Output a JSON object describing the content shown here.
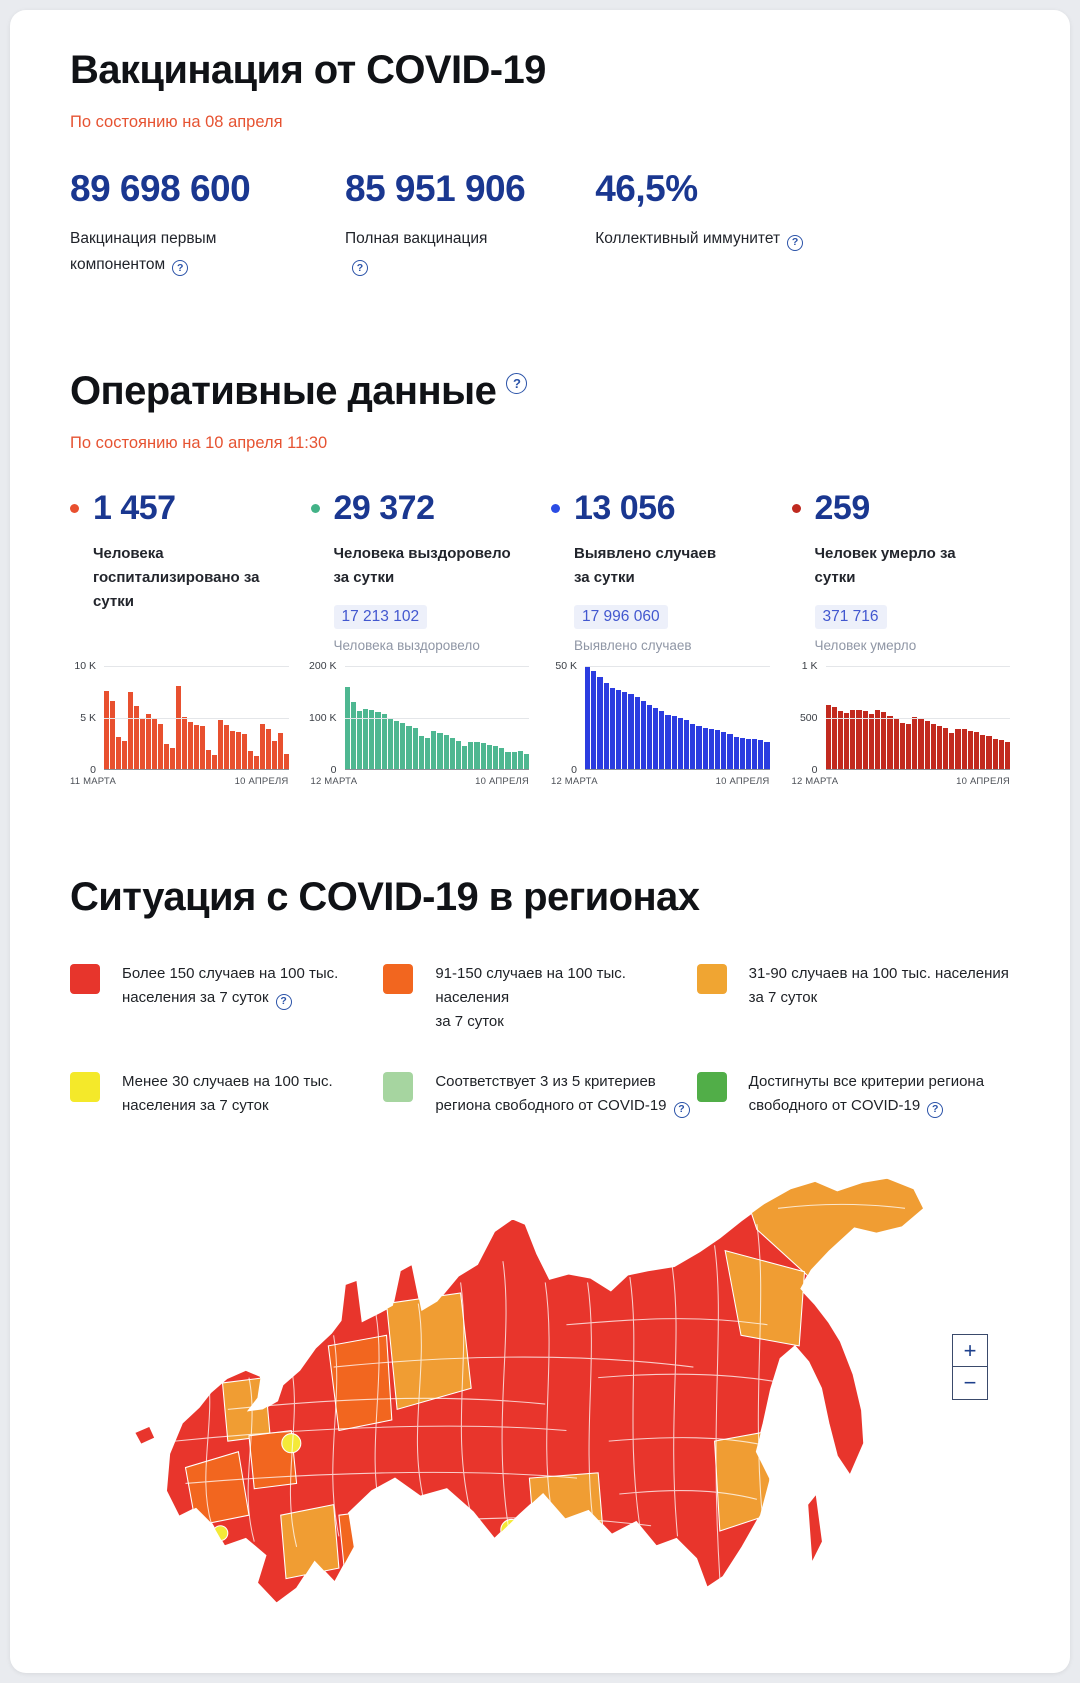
{
  "theme": {
    "page_bg": "#e9ebef",
    "card_bg": "#ffffff",
    "heading": "#101216",
    "accent_red": "#e65332",
    "number_blue": "#1a3790",
    "total_text": "#4257cf",
    "total_bg": "#edf0fa",
    "muted_gray": "#8f96a5",
    "help_blue": "#2b53a8"
  },
  "vaccination": {
    "title": "Вакцинация от COVID-19",
    "as_of": "По состоянию на 08 апреля",
    "stats": [
      {
        "value": "89 698 600",
        "label": "Вакцинация первым компонентом"
      },
      {
        "value": "85 951 906",
        "label": "Полная вакцинация"
      },
      {
        "value": "46,5%",
        "label": "Коллективный иммунитет"
      }
    ]
  },
  "operational": {
    "title": "Оперативные данные",
    "as_of": "По состоянию на 10 апреля 11:30",
    "cards": [
      {
        "value": "1 457",
        "bullet_color": "#e8502f",
        "label": "Человека госпитализировано за сутки",
        "chart": {
          "type": "bar",
          "color": "#e8502f",
          "ymax": 10000,
          "yticks": [
            "10 K",
            "5 K",
            "0"
          ],
          "x_start": "11 МАРТА",
          "x_end": "10 АПРЕЛЯ",
          "values": [
            7600,
            6600,
            3100,
            2700,
            7500,
            6100,
            4900,
            5400,
            5000,
            4400,
            2400,
            2100,
            8100,
            5100,
            4600,
            4300,
            4200,
            1900,
            1400,
            4800,
            4300,
            3700,
            3600,
            3400,
            1800,
            1300,
            4400,
            3900,
            2700,
            3500,
            1457
          ]
        }
      },
      {
        "value": "29 372",
        "bullet_color": "#42b287",
        "label": "Человека выздоровело за сутки",
        "total": "17 213 102",
        "total_label": "Человека выздоровело",
        "chart": {
          "type": "bar",
          "color": "#4eb791",
          "ymax": 200000,
          "yticks": [
            "200 K",
            "100 K",
            "0"
          ],
          "x_start": "12 МАРТА",
          "x_end": "10 АПРЕЛЯ",
          "values": [
            160000,
            131000,
            112000,
            116000,
            114000,
            111000,
            107000,
            99000,
            94000,
            89000,
            84000,
            79000,
            64000,
            60000,
            74000,
            70000,
            67000,
            61000,
            54000,
            44000,
            52000,
            53000,
            50000,
            46000,
            44000,
            41000,
            34000,
            33000,
            36000,
            29372
          ]
        }
      },
      {
        "value": "13 056",
        "bullet_color": "#2b4ce4",
        "label": "Выявлено случаев за сутки",
        "total": "17 996 060",
        "total_label": "Выявлено случаев",
        "chart": {
          "type": "bar",
          "color": "#2b3ce0",
          "ymax": 50000,
          "yticks": [
            "50 K",
            "0"
          ],
          "x_start": "12 МАРТА",
          "x_end": "10 АПРЕЛЯ",
          "values": [
            49500,
            47500,
            44500,
            42000,
            39500,
            38500,
            37500,
            36500,
            35000,
            33000,
            31000,
            29500,
            28000,
            26500,
            26000,
            25000,
            24000,
            22000,
            21000,
            20000,
            19500,
            19000,
            18000,
            17000,
            15500,
            15000,
            14800,
            14500,
            14300,
            13056
          ]
        }
      },
      {
        "value": "259",
        "bullet_color": "#bf2a20",
        "label": "Человек умерло за сутки",
        "total": "371 716",
        "total_label": "Человек умерло",
        "chart": {
          "type": "bar",
          "color": "#c22a1f",
          "ymax": 1000,
          "yticks": [
            "1 K",
            "500",
            "0"
          ],
          "x_start": "12 МАРТА",
          "x_end": "10 АПРЕЛЯ",
          "values": [
            620,
            600,
            560,
            545,
            570,
            575,
            560,
            540,
            575,
            555,
            520,
            490,
            450,
            440,
            505,
            485,
            465,
            440,
            420,
            395,
            350,
            390,
            385,
            375,
            365,
            330,
            320,
            295,
            285,
            259
          ]
        }
      }
    ]
  },
  "regions": {
    "title": "Ситуация с COVID-19 в регионах",
    "legend": [
      {
        "color": "#e7352c",
        "line1": "Более 150 случаев на 100 тыс.",
        "line2": "населения за 7 суток",
        "has_help": true
      },
      {
        "color": "#f2661f",
        "line1": "91-150 случаев на 100 тыс. населения",
        "line2": "за 7 суток",
        "has_help": false
      },
      {
        "color": "#f0a532",
        "line1": "31-90 случаев на 100 тыс. населения",
        "line2": "за 7 суток",
        "has_help": false
      },
      {
        "color": "#f4e92a",
        "line1": "Менее 30 случаев на 100 тыс.",
        "line2": "населения за 7 суток",
        "has_help": false
      },
      {
        "color": "#a6d5a0",
        "line1": "Соответствует 3 из 5 критериев",
        "line2": "региона свободного от COVID-19",
        "has_help": true
      },
      {
        "color": "#51ae48",
        "line1": "Достигнуты все критерии региона",
        "line2": "свободного от COVID-19",
        "has_help": true
      }
    ],
    "map": {
      "zoom_in": "+",
      "zoom_out": "−",
      "colors": {
        "red": "#e8352c",
        "orange": "#f2661f",
        "amber": "#f09d33",
        "yellow": "#f4e938",
        "border": "#ffffff"
      }
    }
  }
}
